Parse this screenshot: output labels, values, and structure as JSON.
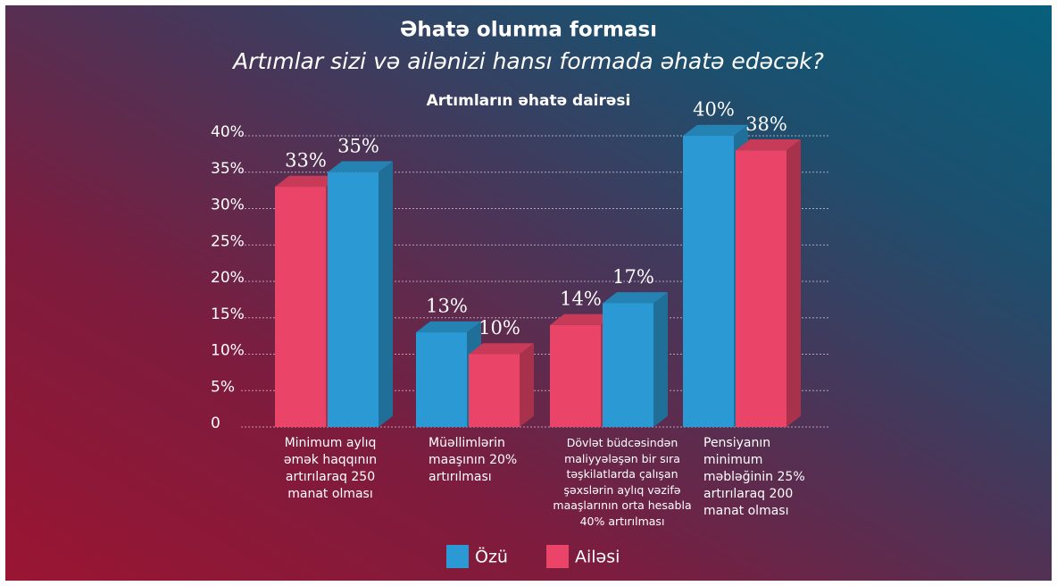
{
  "chart_data": {
    "type": "bar3d",
    "title": "Əhatə olunma forması",
    "subtitle": "Artımlar sizi və ailənizi hansı formada əhatə edəcək?",
    "chart_title": "Artımların əhatə dairəsi",
    "categories": [
      "Minimum aylıq əmək haqqının artırılaraq 250 manat olması",
      "Müəllimlərin maaşının 20% artırılması",
      "Dövlət büdcəsindən maliyyələşən bir sıra təşkilatlarda çalışan şəxslərin aylıq vəzifə maaşlarının orta hesabla 40% artırılması",
      "Pensiyanın minimum məbləğinin 25% artırılaraq 200 manat olması"
    ],
    "series": [
      {
        "name": "Özü",
        "color": "#2b9ad4",
        "values": [
          35,
          13,
          17,
          40
        ],
        "value_labels": [
          "35%",
          "13%",
          "17%",
          "40%"
        ]
      },
      {
        "name": "Ailəsi",
        "color": "#ea4468",
        "values": [
          33,
          10,
          14,
          38
        ],
        "value_labels": [
          "33%",
          "10%",
          "14%",
          "38%"
        ]
      }
    ],
    "ylim": [
      0,
      40
    ],
    "yticks": [
      0,
      {
        "value": 5,
        "label": "5%"
      },
      {
        "value": 10,
        "label": "10%"
      },
      {
        "value": 15,
        "label": "15%"
      },
      {
        "value": 20,
        "label": "20%"
      },
      {
        "value": 25,
        "label": "25%"
      },
      {
        "value": 30,
        "label": "30%"
      },
      {
        "value": 35,
        "label": "35%"
      },
      {
        "value": 40,
        "label": "40%"
      }
    ],
    "grid": true
  }
}
